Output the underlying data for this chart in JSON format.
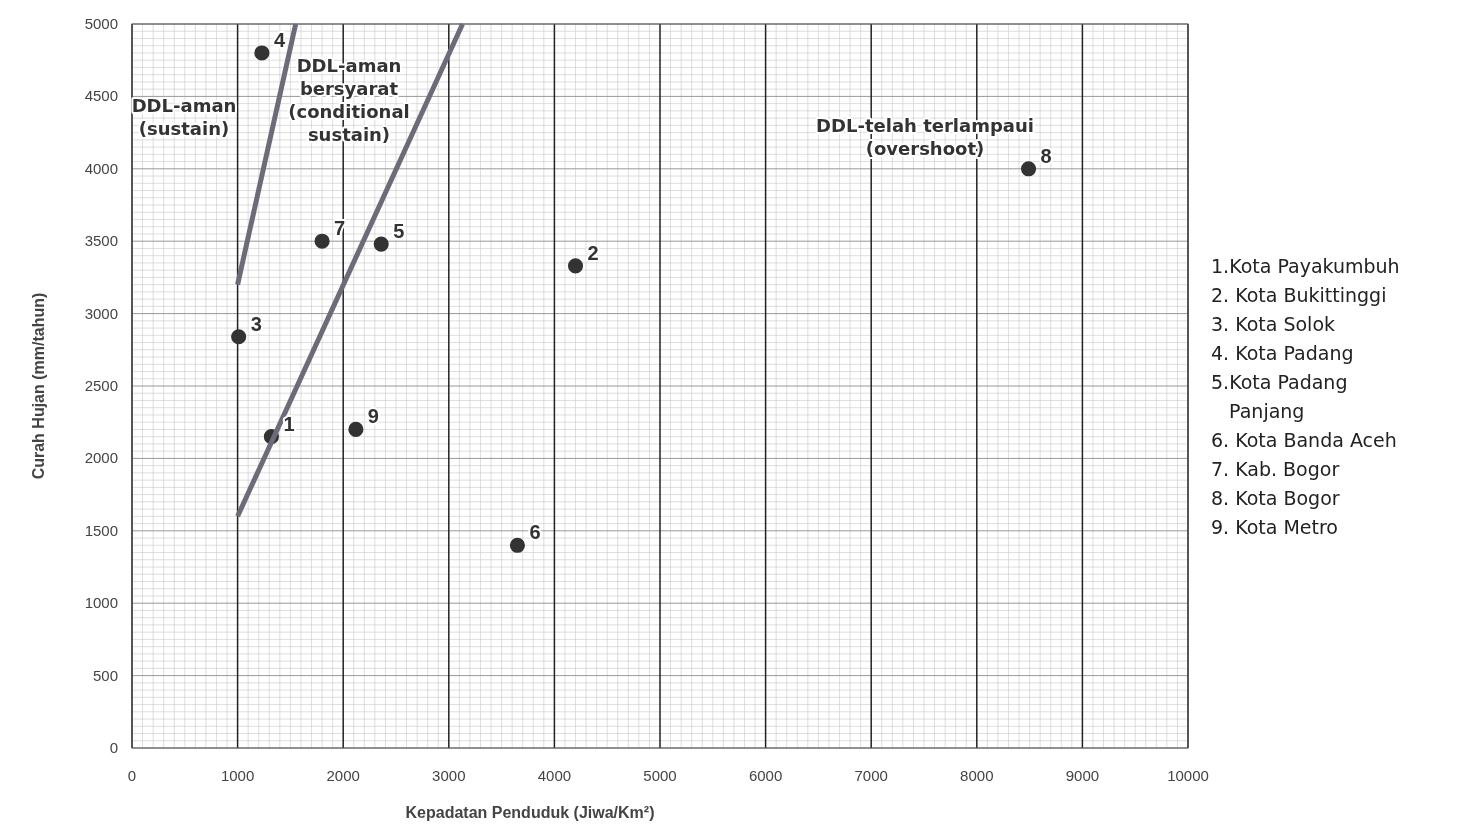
{
  "chart_data": {
    "type": "scatter",
    "xlabel": "Kepadatan Penduduk (Jiwa/Km²)",
    "ylabel": "Curah Hujan (mm/tahun)",
    "xlim": [
      0,
      10000
    ],
    "xticks": [
      0,
      1000,
      2000,
      3000,
      4000,
      5000,
      6000,
      7000,
      8000,
      9000,
      10000
    ],
    "ylim": [
      0,
      5000
    ],
    "yticks": [
      0,
      500,
      1000,
      1500,
      2000,
      2500,
      3000,
      3500,
      4000,
      4500,
      5000
    ],
    "grid": true,
    "series": [
      {
        "color": "#333333",
        "marker": "circle",
        "x": [
          1320,
          4200,
          1010,
          1230,
          2360,
          3650,
          1800,
          8490,
          2120
        ],
        "values": [
          2150,
          3330,
          2840,
          4800,
          3480,
          1400,
          3500,
          4000,
          2200
        ]
      },
      {
        "type": "line",
        "marker": "none",
        "color": "#6e6a78",
        "x": [
          1000,
          1550
        ],
        "values": [
          3200,
          5000
        ]
      },
      {
        "type": "line",
        "marker": "none",
        "color": "#6e6a78",
        "x": [
          1000,
          3130
        ],
        "values": [
          1600,
          5000
        ]
      }
    ],
    "annotations": [
      "DDL-aman\n(sustain)",
      "DDL-aman\nbersyarat\n(conditional\nsustain)",
      "DDL-telah terlampaui\n(overshoot)",
      {
        "text": "1",
        "x": 1320,
        "y": 2150
      },
      {
        "text": "2",
        "x": 4200,
        "y": 3330
      },
      {
        "text": "3",
        "x": 1010,
        "y": 2840
      },
      {
        "text": "4",
        "x": 1230,
        "y": 4800
      },
      {
        "text": "5",
        "x": 2360,
        "y": 3480
      },
      {
        "text": "6",
        "x": 3650,
        "y": 1400
      },
      {
        "text": "7",
        "x": 1800,
        "y": 3500
      },
      {
        "text": "8",
        "x": 8490,
        "y": 4000
      },
      {
        "text": "9",
        "x": 2120,
        "y": 2200
      },
      "1.Kota Payakumbuh",
      "2. Kota Bukittinggi",
      "3. Kota Solok",
      "4. Kota Padang",
      "5.Kota Padang\n   Panjang",
      "6. Kota Banda Aceh",
      "7. Kab. Bogor",
      "8. Kota Bogor",
      "9. Kota Metro"
    ]
  }
}
